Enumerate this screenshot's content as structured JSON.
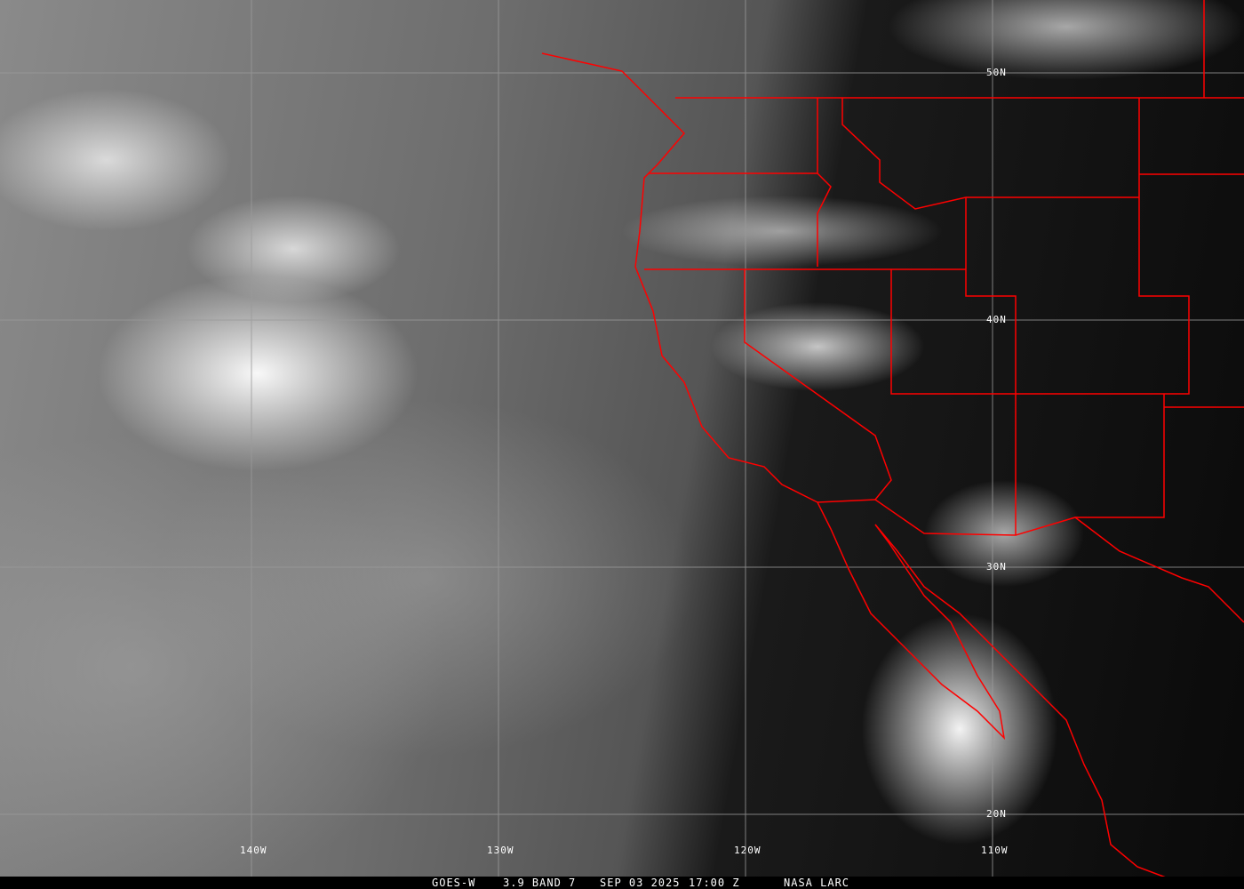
{
  "image": {
    "satellite": "GOES-W",
    "channel": "3.9 BAND 7",
    "date": "SEP 03 2025",
    "time": "17:00 Z",
    "source": "NASA LARC",
    "overlay_color": "#ff0000",
    "grid_color": "#a0a0a0"
  },
  "grid": {
    "latitudes": [
      "50N",
      "40N",
      "30N",
      "20N"
    ],
    "longitudes": [
      "140W",
      "130W",
      "120W",
      "110W"
    ]
  }
}
